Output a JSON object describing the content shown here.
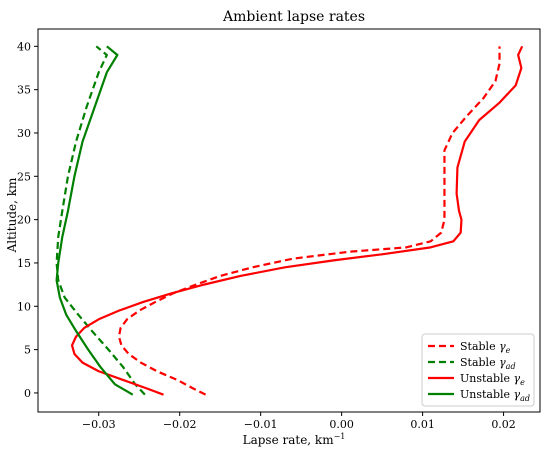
{
  "chart_data": {
    "type": "line",
    "title": "Ambient lapse rates",
    "xlabel": "Lapse rate, km",
    "xlabel_sup": "−1",
    "ylabel": "Altitude, km",
    "xlim": [
      -0.0375,
      0.0245
    ],
    "ylim": [
      -2.2,
      42
    ],
    "xticks": [
      -0.03,
      -0.02,
      -0.01,
      0.0,
      0.01,
      0.02
    ],
    "xtick_labels": [
      "−0.03",
      "−0.02",
      "−0.01",
      "0.00",
      "0.01",
      "0.02"
    ],
    "yticks": [
      0,
      5,
      10,
      15,
      20,
      25,
      30,
      35,
      40
    ],
    "ytick_labels": [
      "0",
      "5",
      "10",
      "15",
      "20",
      "25",
      "30",
      "35",
      "40"
    ],
    "grid": false,
    "legend_position": "bottom-right",
    "series": [
      {
        "name": "Stable",
        "symbol": "γ",
        "subscript": "e",
        "color": "#ff0000",
        "dash": "dashed",
        "points": [
          [
            -0.0168,
            -0.2
          ],
          [
            -0.0183,
            0.5
          ],
          [
            -0.0203,
            1.5
          ],
          [
            -0.0228,
            2.5
          ],
          [
            -0.0248,
            3.5
          ],
          [
            -0.0263,
            4.5
          ],
          [
            -0.0272,
            5.5
          ],
          [
            -0.0275,
            6.5
          ],
          [
            -0.0273,
            7.5
          ],
          [
            -0.0265,
            8.5
          ],
          [
            -0.025,
            9.5
          ],
          [
            -0.023,
            10.5
          ],
          [
            -0.0208,
            11.5
          ],
          [
            -0.018,
            12.5
          ],
          [
            -0.015,
            13.5
          ],
          [
            -0.011,
            14.5
          ],
          [
            -0.006,
            15.5
          ],
          [
            0.001,
            16.3
          ],
          [
            0.008,
            16.8
          ],
          [
            0.011,
            17.5
          ],
          [
            0.0123,
            18.5
          ],
          [
            0.0127,
            20.0
          ],
          [
            0.0127,
            22.0
          ],
          [
            0.0127,
            25.0
          ],
          [
            0.0127,
            28.0
          ],
          [
            0.0137,
            30.0
          ],
          [
            0.0155,
            32.0
          ],
          [
            0.0175,
            34.0
          ],
          [
            0.019,
            36.0
          ],
          [
            0.0195,
            38.0
          ],
          [
            0.0195,
            40.0
          ]
        ]
      },
      {
        "name": "Stable",
        "symbol": "γ",
        "subscript": "ad",
        "color": "#008000",
        "dash": "dashed",
        "points": [
          [
            -0.0243,
            -0.2
          ],
          [
            -0.0255,
            1.0
          ],
          [
            -0.027,
            3.0
          ],
          [
            -0.0288,
            5.0
          ],
          [
            -0.0307,
            7.0
          ],
          [
            -0.0325,
            9.0
          ],
          [
            -0.0342,
            11.0
          ],
          [
            -0.035,
            13.0
          ],
          [
            -0.0352,
            15.0
          ],
          [
            -0.035,
            18.0
          ],
          [
            -0.0345,
            21.0
          ],
          [
            -0.0338,
            25.0
          ],
          [
            -0.0328,
            29.0
          ],
          [
            -0.0315,
            33.0
          ],
          [
            -0.03,
            37.0
          ],
          [
            -0.029,
            39.0
          ],
          [
            -0.0303,
            40.0
          ]
        ]
      },
      {
        "name": "Unstable",
        "symbol": "γ",
        "subscript": "e",
        "color": "#ff0000",
        "dash": "solid",
        "points": [
          [
            -0.022,
            -0.2
          ],
          [
            -0.024,
            0.5
          ],
          [
            -0.027,
            1.5
          ],
          [
            -0.03,
            2.5
          ],
          [
            -0.032,
            3.5
          ],
          [
            -0.033,
            4.5
          ],
          [
            -0.0333,
            5.5
          ],
          [
            -0.0328,
            6.5
          ],
          [
            -0.0318,
            7.5
          ],
          [
            -0.03,
            8.5
          ],
          [
            -0.0275,
            9.5
          ],
          [
            -0.0245,
            10.5
          ],
          [
            -0.021,
            11.5
          ],
          [
            -0.017,
            12.5
          ],
          [
            -0.0125,
            13.5
          ],
          [
            -0.007,
            14.5
          ],
          [
            -0.001,
            15.3
          ],
          [
            0.005,
            16.0
          ],
          [
            0.011,
            16.8
          ],
          [
            0.0138,
            17.5
          ],
          [
            0.0147,
            18.5
          ],
          [
            0.0148,
            20.0
          ],
          [
            0.0145,
            21.0
          ],
          [
            0.0142,
            23.0
          ],
          [
            0.0143,
            26.0
          ],
          [
            0.0152,
            29.0
          ],
          [
            0.017,
            31.5
          ],
          [
            0.0195,
            33.5
          ],
          [
            0.0215,
            35.5
          ],
          [
            0.0222,
            37.5
          ],
          [
            0.0218,
            39.0
          ],
          [
            0.0223,
            40.0
          ]
        ]
      },
      {
        "name": "Unstable",
        "symbol": "γ",
        "subscript": "ad",
        "color": "#008000",
        "dash": "solid",
        "points": [
          [
            -0.0258,
            -0.2
          ],
          [
            -0.028,
            1.0
          ],
          [
            -0.0298,
            3.0
          ],
          [
            -0.0313,
            5.0
          ],
          [
            -0.0327,
            7.0
          ],
          [
            -0.034,
            9.0
          ],
          [
            -0.0348,
            11.0
          ],
          [
            -0.0352,
            13.0
          ],
          [
            -0.035,
            15.0
          ],
          [
            -0.0345,
            18.0
          ],
          [
            -0.0338,
            21.0
          ],
          [
            -0.033,
            25.0
          ],
          [
            -0.032,
            29.0
          ],
          [
            -0.0305,
            33.0
          ],
          [
            -0.029,
            37.0
          ],
          [
            -0.0277,
            39.0
          ],
          [
            -0.029,
            40.0
          ]
        ]
      }
    ]
  }
}
